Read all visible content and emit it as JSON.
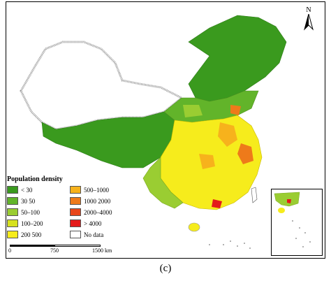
{
  "map": {
    "legend_title": "Population density",
    "legend_items": [
      {
        "label": "< 30",
        "color": "#3a9a1e"
      },
      {
        "label": "500–1000",
        "color": "#f7b21c"
      },
      {
        "label": "30  50",
        "color": "#62b42a"
      },
      {
        "label": "1000  2000",
        "color": "#ee7a1a"
      },
      {
        "label": "50–100",
        "color": "#9acd32"
      },
      {
        "label": "2000–4000",
        "color": "#e8461a"
      },
      {
        "label": "100–200",
        "color": "#d6e11e"
      },
      {
        "label": "> 4000",
        "color": "#e41a1a"
      },
      {
        "label": "200  500",
        "color": "#f6ec1c"
      },
      {
        "label": "No data",
        "color": "#ffffff"
      }
    ],
    "scale_labels": [
      "0",
      "750",
      "1500 km"
    ],
    "north_label": "N",
    "caption": "(c)"
  }
}
